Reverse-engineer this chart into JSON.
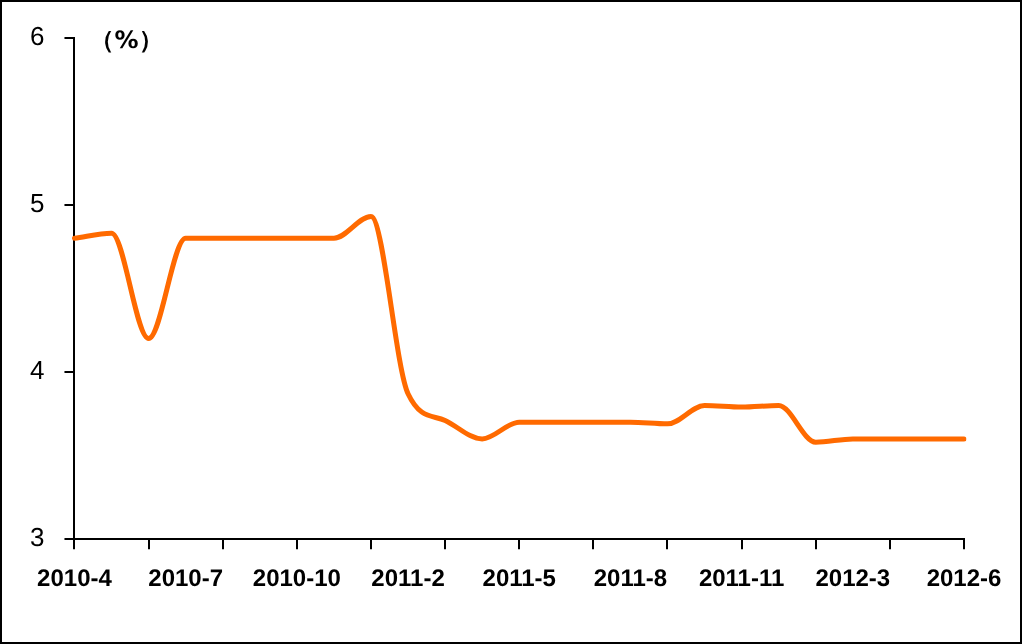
{
  "chart_data": {
    "type": "line",
    "ylabel": "（%）",
    "categories": [
      "2010-4",
      null,
      null,
      "2010-7",
      null,
      null,
      "2010-10",
      null,
      null,
      "2011-2",
      null,
      null,
      "2011-5",
      null,
      null,
      "2011-8",
      null,
      null,
      "2011-11",
      null,
      null,
      "2012-3",
      null,
      null,
      "2012-6"
    ],
    "series": [
      {
        "color": "#ff6a00",
        "values": [
          4.8,
          4.83,
          4.2,
          4.8,
          4.8,
          4.8,
          4.8,
          4.8,
          4.93,
          3.87,
          3.71,
          3.6,
          3.7,
          3.7,
          3.7,
          3.7,
          3.69,
          3.8,
          3.79,
          3.8,
          3.58,
          3.6,
          3.6,
          3.6,
          3.6
        ]
      }
    ],
    "ylim": [
      3,
      6
    ],
    "yticks": [
      3,
      4,
      5,
      6
    ],
    "grid": false,
    "legend": false,
    "marker": "none",
    "line_style": "solid"
  }
}
